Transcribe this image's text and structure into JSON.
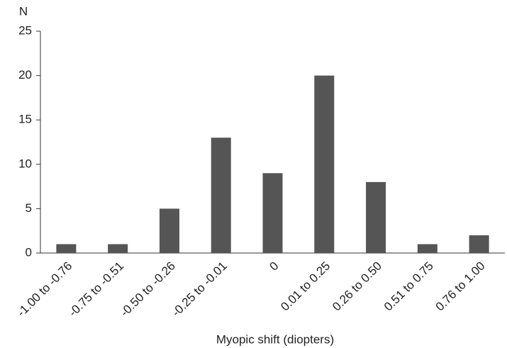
{
  "chart_data": {
    "type": "bar",
    "y_label": "N",
    "x_label": "Myopic shift (diopters)",
    "categories": [
      "-1.00 to -0.76",
      "-0.75 to -0.51",
      "-0.50 to -0.26",
      "-0.25 to -0.01",
      "0",
      "0.01 to 0.25",
      "0.26 to 0.50",
      "0.51 to 0.75",
      "0.76 to 1.00"
    ],
    "values": [
      1,
      1,
      5,
      13,
      9,
      20,
      8,
      1,
      2
    ],
    "color": "#555555",
    "ylim": [
      0,
      25
    ],
    "yticks": [
      0,
      5,
      10,
      15,
      20,
      25
    ],
    "grid": false
  }
}
